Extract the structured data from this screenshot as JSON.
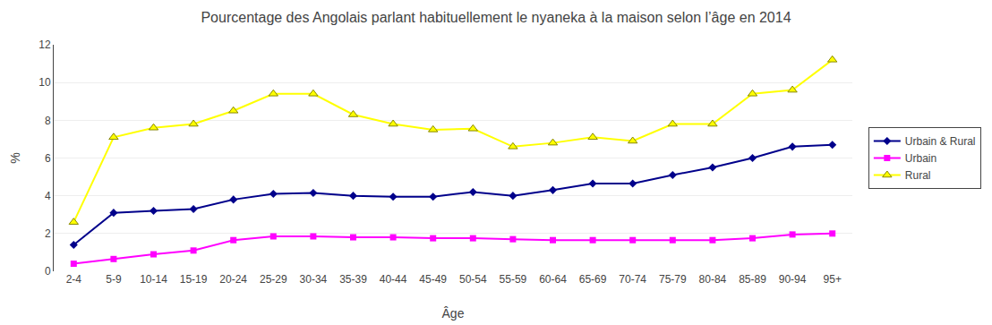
{
  "chart_data": {
    "type": "line",
    "title": "Pourcentage des Angolais parlant habituellement le nyaneka à la maison selon l’âge en 2014",
    "x_label": "Âge",
    "y_label": "%",
    "categories": [
      "2-4",
      "5-9",
      "10-14",
      "15-19",
      "20-24",
      "25-29",
      "30-34",
      "35-39",
      "40-44",
      "45-49",
      "50-54",
      "55-59",
      "60-64",
      "65-69",
      "70-74",
      "75-79",
      "80-84",
      "85-89",
      "90-94",
      "95+"
    ],
    "series": [
      {
        "name": "Urbain & Rural",
        "color": "#00008B",
        "marker": "diamond",
        "values": [
          1.4,
          3.1,
          3.2,
          3.3,
          3.8,
          4.1,
          4.15,
          4.0,
          3.95,
          3.95,
          4.2,
          4.0,
          4.3,
          4.65,
          4.65,
          5.1,
          5.5,
          6.0,
          6.6,
          6.7
        ]
      },
      {
        "name": "Urbain",
        "color": "#FF00FF",
        "marker": "square",
        "values": [
          0.4,
          0.65,
          0.9,
          1.1,
          1.65,
          1.85,
          1.85,
          1.8,
          1.8,
          1.75,
          1.75,
          1.7,
          1.65,
          1.65,
          1.65,
          1.65,
          1.65,
          1.75,
          1.95,
          2.0
        ]
      },
      {
        "name": "Rural",
        "color": "#FFFF00",
        "marker": "triangle-up",
        "values": [
          2.6,
          7.1,
          7.6,
          7.8,
          8.5,
          9.4,
          9.4,
          8.3,
          7.8,
          7.5,
          7.55,
          6.6,
          6.8,
          7.1,
          6.9,
          7.8,
          7.8,
          9.4,
          9.6,
          11.2
        ]
      }
    ],
    "ylim": [
      0,
      12
    ],
    "yticks": [
      0,
      2,
      4,
      6,
      8,
      10,
      12
    ],
    "grid": true,
    "legend": "right"
  }
}
